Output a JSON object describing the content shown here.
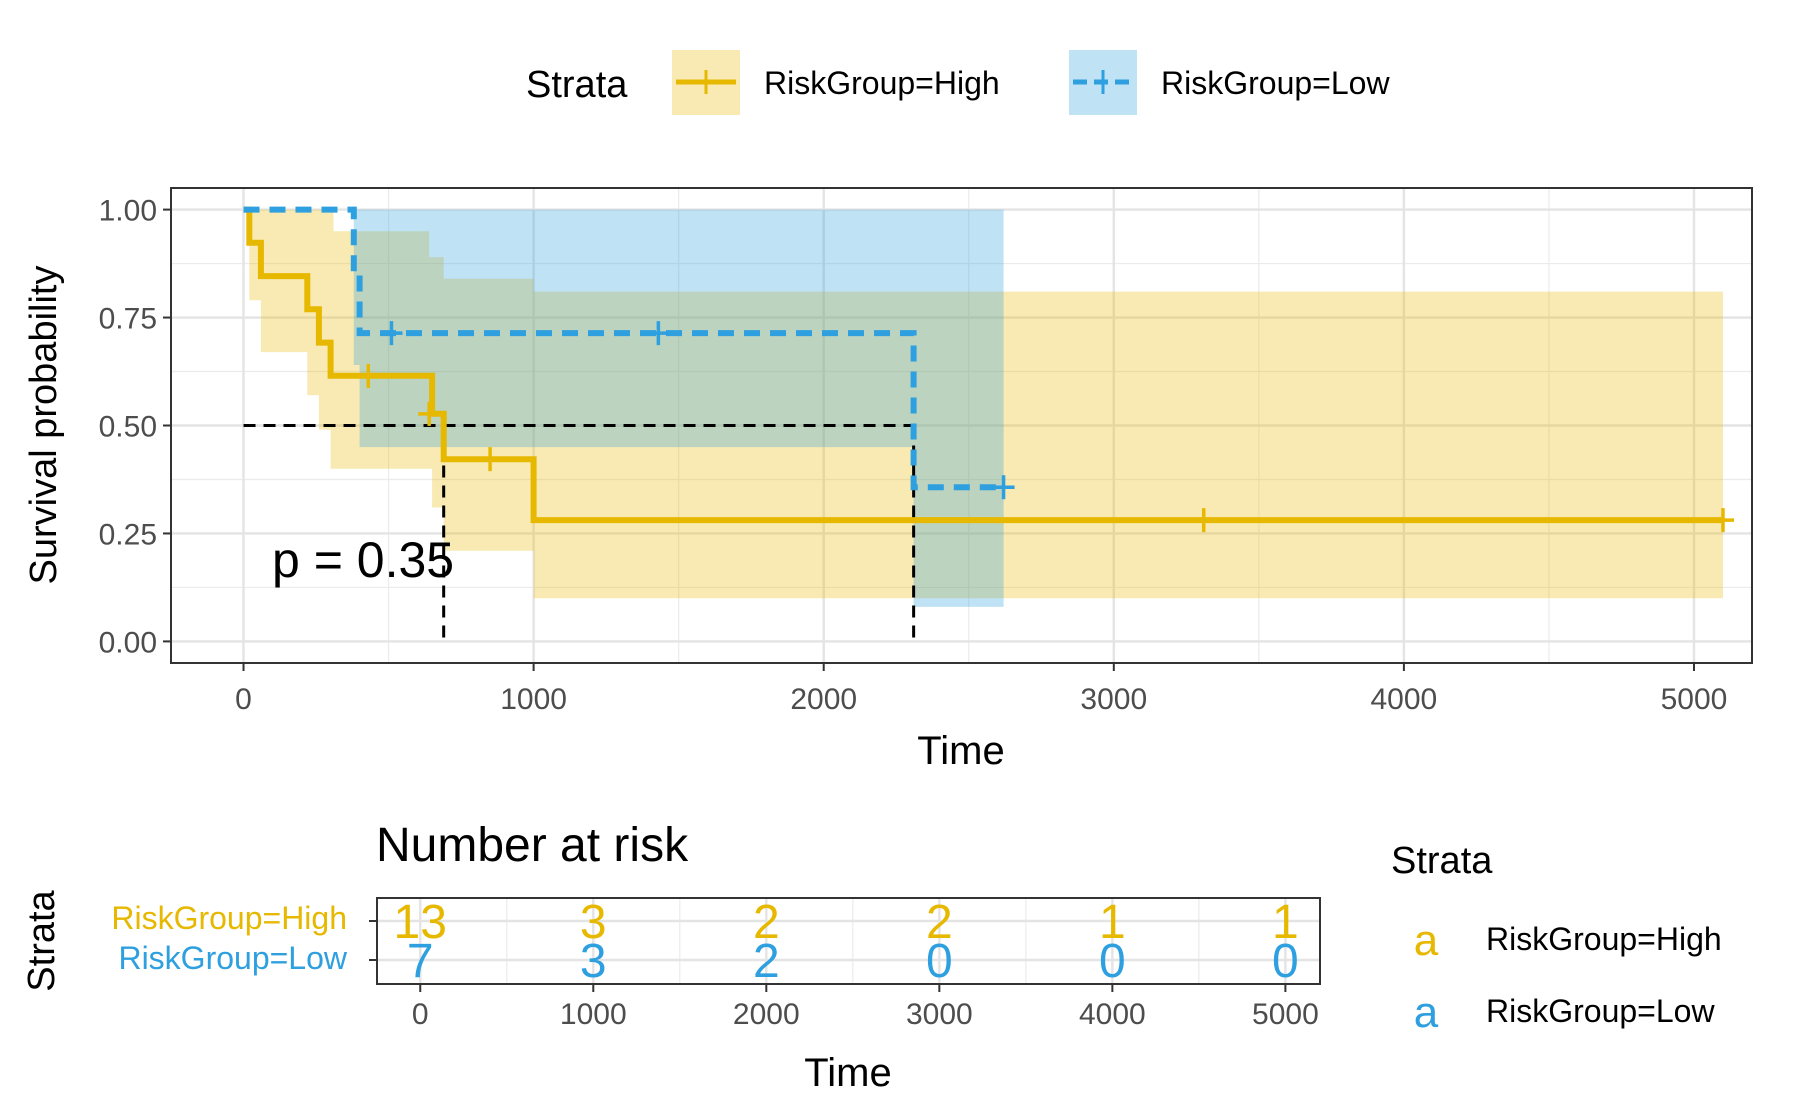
{
  "chart_data": [
    {
      "type": "line",
      "title": "",
      "xlabel": "Time",
      "ylabel": "Survival probability",
      "xlim": [
        -250,
        5200
      ],
      "ylim": [
        -0.05,
        1.05
      ],
      "x_ticks": [
        "0",
        "1000",
        "2000",
        "3000",
        "4000",
        "5000"
      ],
      "y_ticks": [
        "0.00",
        "0.25",
        "0.50",
        "0.75",
        "1.00"
      ],
      "grid": true,
      "annotation": "p = 0.35",
      "legend": {
        "title": "Strata",
        "position": "top",
        "entries": [
          "RiskGroup=High",
          "RiskGroup=Low"
        ]
      },
      "median_survival": [
        {
          "series": "RiskGroup=High",
          "time": 690,
          "probability": 0.5
        },
        {
          "series": "RiskGroup=Low",
          "time": 2310,
          "probability": 0.5
        }
      ],
      "series": [
        {
          "name": "RiskGroup=High",
          "color": "#E7B800",
          "line_style": "solid",
          "steps": [
            {
              "x": 0,
              "y": 1.0
            },
            {
              "x": 20,
              "y": 0.923
            },
            {
              "x": 60,
              "y": 0.846
            },
            {
              "x": 220,
              "y": 0.769
            },
            {
              "x": 260,
              "y": 0.692
            },
            {
              "x": 300,
              "y": 0.615
            },
            {
              "x": 650,
              "y": 0.527
            },
            {
              "x": 690,
              "y": 0.422
            },
            {
              "x": 1000,
              "y": 0.281
            },
            {
              "x": 5100,
              "y": 0.281
            }
          ],
          "censored": [
            {
              "x": 430,
              "y": 0.615
            },
            {
              "x": 640,
              "y": 0.527
            },
            {
              "x": 850,
              "y": 0.422
            },
            {
              "x": 3310,
              "y": 0.281
            },
            {
              "x": 5100,
              "y": 0.281
            }
          ],
          "ci_lower": [
            {
              "x": 0,
              "y": 1.0
            },
            {
              "x": 20,
              "y": 0.79
            },
            {
              "x": 60,
              "y": 0.67
            },
            {
              "x": 220,
              "y": 0.57
            },
            {
              "x": 260,
              "y": 0.49
            },
            {
              "x": 300,
              "y": 0.4
            },
            {
              "x": 650,
              "y": 0.31
            },
            {
              "x": 690,
              "y": 0.21
            },
            {
              "x": 1000,
              "y": 0.1
            },
            {
              "x": 5100,
              "y": 0.1
            }
          ],
          "ci_upper": [
            {
              "x": 0,
              "y": 1.0
            },
            {
              "x": 310,
              "y": 0.95
            },
            {
              "x": 640,
              "y": 0.89
            },
            {
              "x": 690,
              "y": 0.84
            },
            {
              "x": 1000,
              "y": 0.81
            },
            {
              "x": 5100,
              "y": 0.81
            }
          ]
        },
        {
          "name": "RiskGroup=Low",
          "color": "#2E9FDF",
          "line_style": "dashed",
          "steps": [
            {
              "x": 0,
              "y": 1.0
            },
            {
              "x": 380,
              "y": 0.857
            },
            {
              "x": 400,
              "y": 0.714
            },
            {
              "x": 2310,
              "y": 0.357
            },
            {
              "x": 2620,
              "y": 0.357
            }
          ],
          "censored": [
            {
              "x": 510,
              "y": 0.714
            },
            {
              "x": 1430,
              "y": 0.714
            },
            {
              "x": 2620,
              "y": 0.357
            }
          ],
          "ci_lower": [
            {
              "x": 0,
              "y": 1.0
            },
            {
              "x": 380,
              "y": 0.64
            },
            {
              "x": 400,
              "y": 0.45
            },
            {
              "x": 2310,
              "y": 0.08
            },
            {
              "x": 2620,
              "y": 0.08
            }
          ],
          "ci_upper": [
            {
              "x": 0,
              "y": 1.0
            },
            {
              "x": 2620,
              "y": 1.0
            }
          ]
        }
      ]
    },
    {
      "type": "table",
      "title": "Number at risk",
      "xlabel": "Time",
      "ylabel": "Strata",
      "xlim": [
        -250,
        5200
      ],
      "x_ticks": [
        "0",
        "1000",
        "2000",
        "3000",
        "4000",
        "5000"
      ],
      "times": [
        0,
        1000,
        2000,
        3000,
        4000,
        5000
      ],
      "rows": [
        {
          "name": "RiskGroup=High",
          "color": "#E7B800",
          "values": [
            "13",
            "3",
            "2",
            "2",
            "1",
            "1"
          ]
        },
        {
          "name": "RiskGroup=Low",
          "color": "#2E9FDF",
          "values": [
            "7",
            "3",
            "2",
            "0",
            "0",
            "0"
          ]
        }
      ],
      "legend": {
        "title": "Strata",
        "key_glyph": "a",
        "entries": [
          "RiskGroup=High",
          "RiskGroup=Low"
        ]
      }
    }
  ]
}
